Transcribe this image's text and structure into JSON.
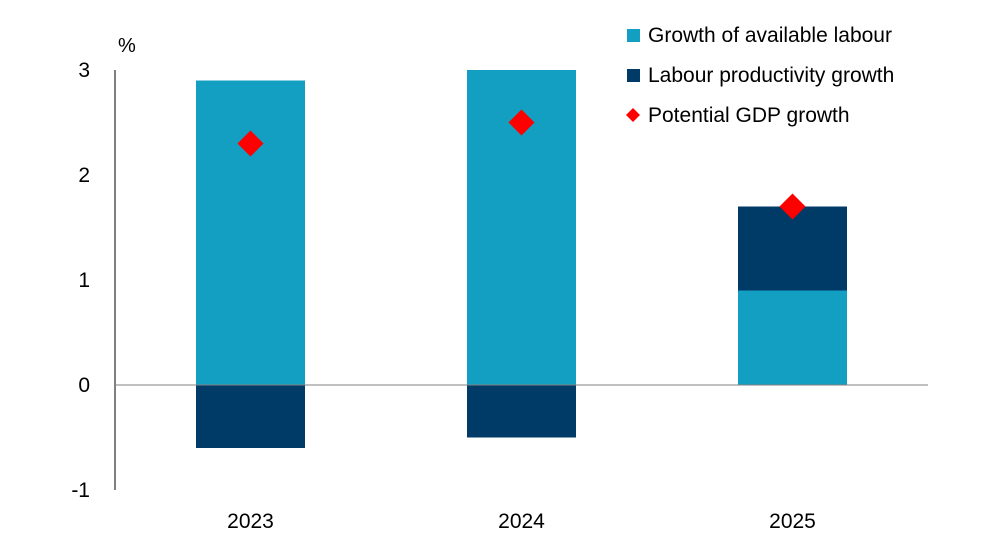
{
  "chart_data": {
    "type": "bar",
    "stacked": true,
    "categories": [
      "2023",
      "2024",
      "2025"
    ],
    "series": [
      {
        "name": "Growth of available labour",
        "values": [
          2.9,
          3.0,
          0.9
        ],
        "color": "#139FC2",
        "kind": "bar"
      },
      {
        "name": "Labour productivity growth",
        "values": [
          -0.6,
          -0.5,
          0.8
        ],
        "color": "#003A66",
        "kind": "bar"
      },
      {
        "name": "Potential GDP growth",
        "values": [
          2.3,
          2.5,
          1.7
        ],
        "color": "#FF0000",
        "kind": "marker",
        "marker": "diamond"
      }
    ],
    "y_unit": "%",
    "ylim": [
      -1,
      3
    ],
    "yticks": [
      "-1",
      "0",
      "1",
      "2",
      "3"
    ],
    "grid": false,
    "legend_position": "top-right"
  }
}
